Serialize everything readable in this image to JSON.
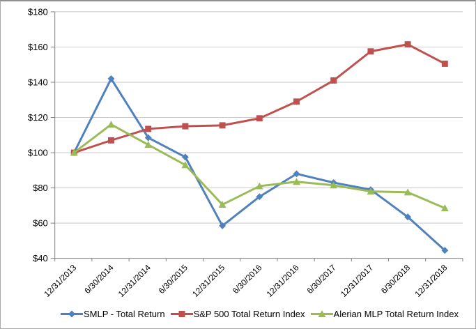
{
  "chart": {
    "title": "",
    "y_axis": {
      "labels": [
        "$180",
        "$160",
        "$140",
        "$120",
        "$100",
        "$80",
        "$60",
        "$40"
      ],
      "values": [
        180,
        160,
        140,
        120,
        100,
        80,
        60,
        40
      ]
    }
  },
  "chart_data": {
    "type": "line",
    "title": "",
    "xlabel": "",
    "ylabel": "",
    "ylim": [
      40,
      180
    ],
    "y_tick_step": 20,
    "y_tick_format": "$",
    "grid": true,
    "legend_position": "bottom",
    "categories": [
      "12/31/2013",
      "6/30/2014",
      "12/31/2014",
      "6/30/2015",
      "12/31/2015",
      "6/30/2016",
      "12/31/2016",
      "6/30/2017",
      "12/31/2017",
      "6/30/2018",
      "12/31/2018"
    ],
    "series": [
      {
        "id": "smlp",
        "name": "SMLP - Total Return",
        "color": "#4F81BD",
        "marker": "diamond",
        "values": [
          100,
          142,
          108.5,
          97.5,
          58.5,
          75,
          88,
          83,
          79,
          63.5,
          44.5
        ]
      },
      {
        "id": "sp500",
        "name": "S&P 500 Total Return Index",
        "color": "#C0504D",
        "marker": "square",
        "values": [
          100,
          107,
          113.5,
          115,
          115.5,
          119.5,
          129,
          141,
          157.5,
          161.5,
          150.5
        ]
      },
      {
        "id": "alerian",
        "name": "Alerian MLP Total Return Index",
        "color": "#9BBB59",
        "marker": "triangle",
        "values": [
          100,
          116,
          104.5,
          93,
          70.5,
          81,
          83.5,
          81.5,
          78,
          77.5,
          68.5
        ]
      }
    ]
  },
  "colors": {
    "grid_line": "#c9c9c9",
    "axis_line": "#808080",
    "frame_border": "#a9a9a9",
    "background": "#ffffff",
    "text": "#000000"
  }
}
